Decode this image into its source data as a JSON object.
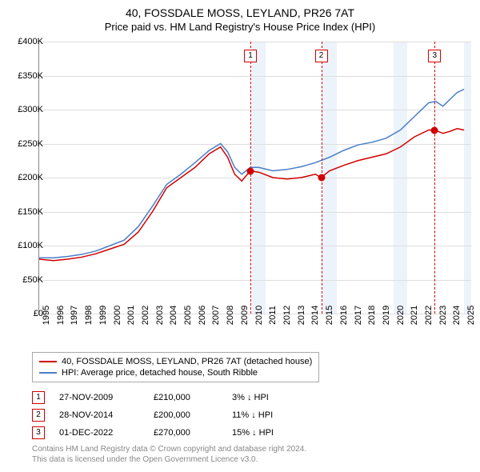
{
  "title": "40, FOSSDALE MOSS, LEYLAND, PR26 7AT",
  "subtitle": "Price paid vs. HM Land Registry's House Price Index (HPI)",
  "chart": {
    "type": "line",
    "background_color": "#ffffff",
    "grid_color": "#dddddd",
    "axis_color": "#888888",
    "ylabel_fontsize": 11,
    "xlabel_fontsize": 11,
    "ylim": [
      0,
      400000
    ],
    "yticks": [
      {
        "v": 0,
        "label": "£0"
      },
      {
        "v": 50000,
        "label": "£50K"
      },
      {
        "v": 100000,
        "label": "£100K"
      },
      {
        "v": 150000,
        "label": "£150K"
      },
      {
        "v": 200000,
        "label": "£200K"
      },
      {
        "v": 250000,
        "label": "£250K"
      },
      {
        "v": 300000,
        "label": "£300K"
      },
      {
        "v": 350000,
        "label": "£350K"
      },
      {
        "v": 400000,
        "label": "£400K"
      }
    ],
    "xlim": [
      1995,
      2025.5
    ],
    "xticks": [
      1995,
      1996,
      1997,
      1998,
      1999,
      2000,
      2001,
      2002,
      2003,
      2004,
      2005,
      2006,
      2007,
      2008,
      2009,
      2010,
      2011,
      2012,
      2013,
      2014,
      2015,
      2016,
      2017,
      2018,
      2019,
      2020,
      2021,
      2022,
      2023,
      2024,
      2025
    ],
    "shaded_5yr_color": "#eaf1fa",
    "shaded_ranges": [
      [
        2010,
        2011
      ],
      [
        2015,
        2016
      ],
      [
        2020,
        2021
      ],
      [
        2025,
        2025.5
      ]
    ],
    "series": [
      {
        "name": "property",
        "label": "40, FOSSDALE MOSS, LEYLAND, PR26 7AT (detached house)",
        "color": "#d00000",
        "line_width": 1.5,
        "points": [
          [
            1995.0,
            80000
          ],
          [
            1996.0,
            78000
          ],
          [
            1997.0,
            80000
          ],
          [
            1998.0,
            83000
          ],
          [
            1999.0,
            88000
          ],
          [
            2000.0,
            95000
          ],
          [
            2001.0,
            102000
          ],
          [
            2002.0,
            120000
          ],
          [
            2003.0,
            150000
          ],
          [
            2004.0,
            185000
          ],
          [
            2005.0,
            200000
          ],
          [
            2006.0,
            215000
          ],
          [
            2007.0,
            235000
          ],
          [
            2007.8,
            245000
          ],
          [
            2008.3,
            230000
          ],
          [
            2008.8,
            205000
          ],
          [
            2009.3,
            195000
          ],
          [
            2009.9,
            210000
          ],
          [
            2010.5,
            208000
          ],
          [
            2011.5,
            200000
          ],
          [
            2012.5,
            198000
          ],
          [
            2013.5,
            200000
          ],
          [
            2014.5,
            205000
          ],
          [
            2014.9,
            200000
          ],
          [
            2015.5,
            210000
          ],
          [
            2016.5,
            218000
          ],
          [
            2017.5,
            225000
          ],
          [
            2018.5,
            230000
          ],
          [
            2019.5,
            235000
          ],
          [
            2020.5,
            245000
          ],
          [
            2021.5,
            260000
          ],
          [
            2022.5,
            270000
          ],
          [
            2022.95,
            270000
          ],
          [
            2023.5,
            265000
          ],
          [
            2024.0,
            268000
          ],
          [
            2024.5,
            272000
          ],
          [
            2025.0,
            270000
          ]
        ]
      },
      {
        "name": "hpi",
        "label": "HPI: Average price, detached house, South Ribble",
        "color": "#4a7ec8",
        "line_width": 1.5,
        "points": [
          [
            1995.0,
            82000
          ],
          [
            1996.0,
            82000
          ],
          [
            1997.0,
            84000
          ],
          [
            1998.0,
            87000
          ],
          [
            1999.0,
            92000
          ],
          [
            2000.0,
            100000
          ],
          [
            2001.0,
            108000
          ],
          [
            2002.0,
            128000
          ],
          [
            2003.0,
            158000
          ],
          [
            2004.0,
            190000
          ],
          [
            2005.0,
            205000
          ],
          [
            2006.0,
            222000
          ],
          [
            2007.0,
            240000
          ],
          [
            2007.8,
            250000
          ],
          [
            2008.3,
            238000
          ],
          [
            2008.8,
            215000
          ],
          [
            2009.3,
            205000
          ],
          [
            2009.9,
            215000
          ],
          [
            2010.5,
            215000
          ],
          [
            2011.5,
            210000
          ],
          [
            2012.5,
            212000
          ],
          [
            2013.5,
            216000
          ],
          [
            2014.5,
            222000
          ],
          [
            2015.5,
            230000
          ],
          [
            2016.5,
            240000
          ],
          [
            2017.5,
            248000
          ],
          [
            2018.5,
            252000
          ],
          [
            2019.5,
            258000
          ],
          [
            2020.5,
            270000
          ],
          [
            2021.5,
            290000
          ],
          [
            2022.5,
            310000
          ],
          [
            2023.0,
            312000
          ],
          [
            2023.5,
            305000
          ],
          [
            2024.0,
            315000
          ],
          [
            2024.5,
            325000
          ],
          [
            2025.0,
            330000
          ]
        ]
      }
    ],
    "markers": [
      {
        "n": "1",
        "x": 2009.91,
        "y": 210000
      },
      {
        "n": "2",
        "x": 2014.91,
        "y": 200000
      },
      {
        "n": "3",
        "x": 2022.92,
        "y": 270000
      }
    ],
    "marker_color": "#d00000"
  },
  "legend": {
    "items": [
      {
        "color": "#d00000",
        "label": "40, FOSSDALE MOSS, LEYLAND, PR26 7AT (detached house)"
      },
      {
        "color": "#4a7ec8",
        "label": "HPI: Average price, detached house, South Ribble"
      }
    ]
  },
  "transactions": [
    {
      "n": "1",
      "date": "27-NOV-2009",
      "price": "£210,000",
      "pct": "3% ↓ HPI"
    },
    {
      "n": "2",
      "date": "28-NOV-2014",
      "price": "£200,000",
      "pct": "11% ↓ HPI"
    },
    {
      "n": "3",
      "date": "01-DEC-2022",
      "price": "£270,000",
      "pct": "15% ↓ HPI"
    }
  ],
  "footer": {
    "line1": "Contains HM Land Registry data © Crown copyright and database right 2024.",
    "line2": "This data is licensed under the Open Government Licence v3.0."
  }
}
